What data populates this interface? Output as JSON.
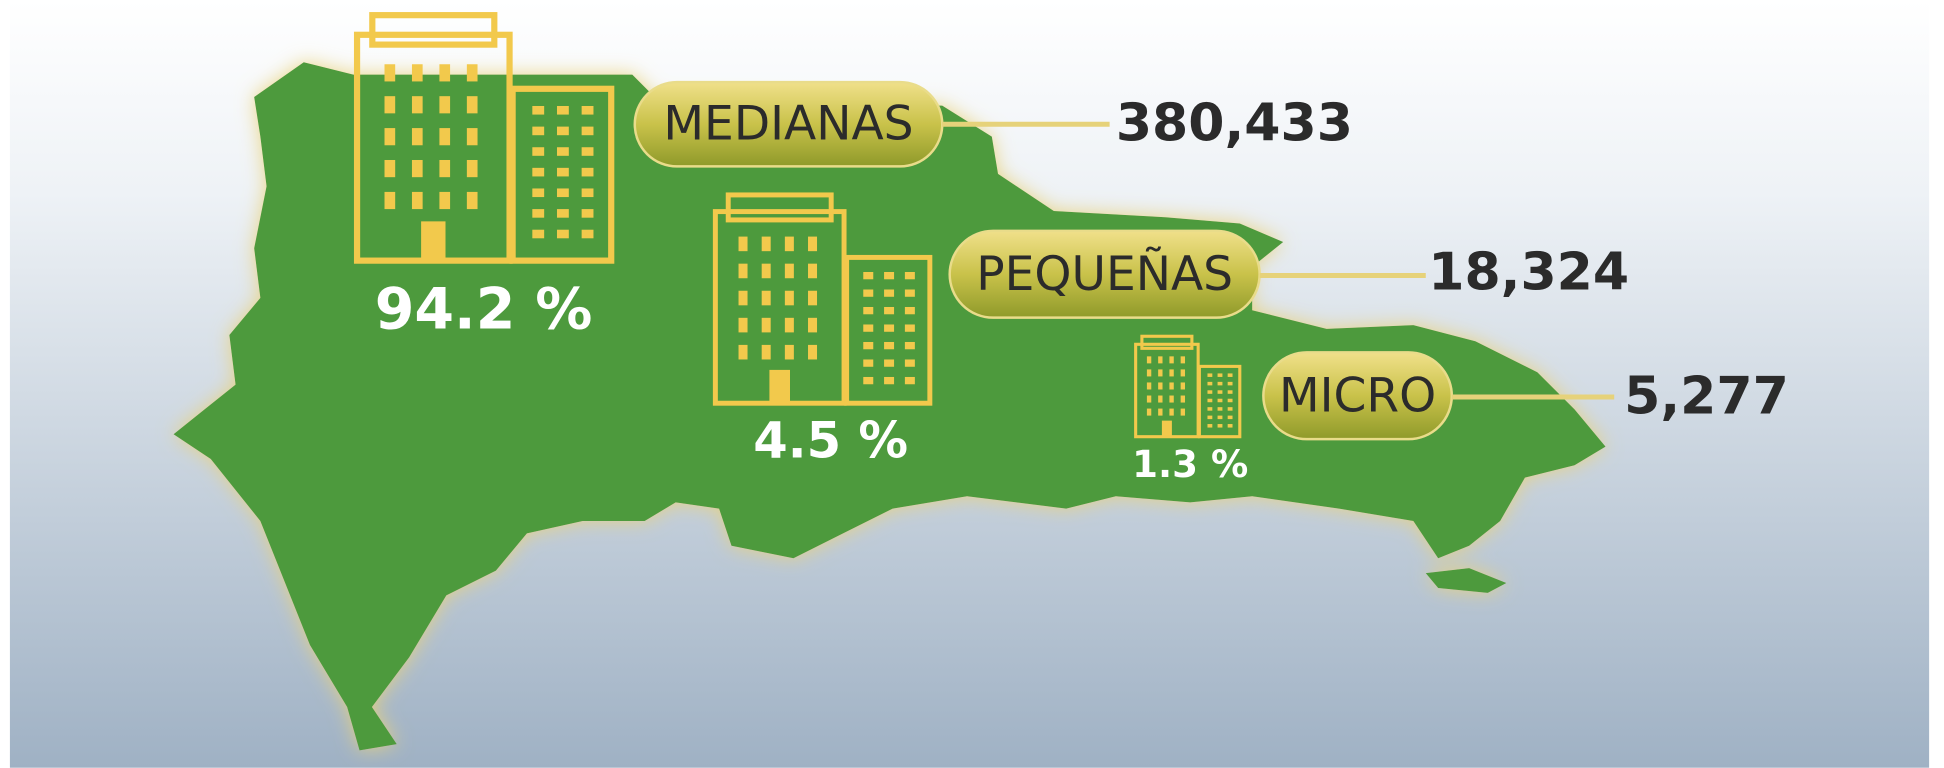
{
  "items": [
    {
      "label": "MEDIANAS",
      "value": "380,433",
      "percent": "94.2 %"
    },
    {
      "label": "PEQUEÑAS",
      "value": "18,324",
      "percent": "4.5 %"
    },
    {
      "label": "MICRO",
      "value": "5,277",
      "percent": "1.3 %"
    }
  ]
}
